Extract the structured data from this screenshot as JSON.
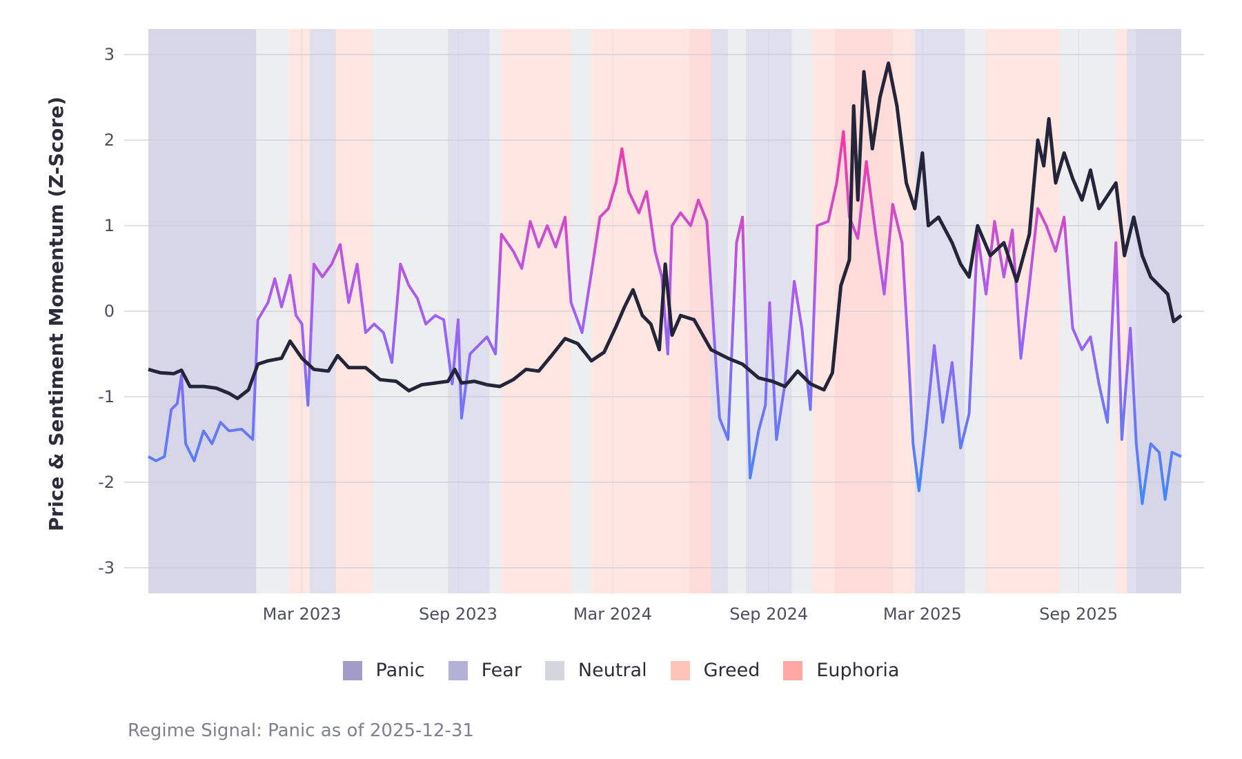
{
  "chart_data": {
    "type": "line",
    "title": "",
    "xlabel": "",
    "ylabel": "Price & Sentiment Momentum (Z-Score)",
    "x_range": [
      "2022-09-01",
      "2025-12-31"
    ],
    "ylim": [
      -3.3,
      3.3
    ],
    "y_ticks": [
      3,
      2,
      1,
      0,
      -1,
      -2,
      -3
    ],
    "x_ticks": [
      {
        "date": "2023-03-01",
        "label": "Mar 2023"
      },
      {
        "date": "2023-09-01",
        "label": "Sep 2023"
      },
      {
        "date": "2024-03-01",
        "label": "Mar 2024"
      },
      {
        "date": "2024-09-01",
        "label": "Sep 2024"
      },
      {
        "date": "2025-03-01",
        "label": "Mar 2025"
      },
      {
        "date": "2025-09-01",
        "label": "Sep 2025"
      }
    ],
    "grid": true,
    "legend_position": "bottom",
    "regime_colors": {
      "Panic": "#a09ec8",
      "Fear": "#b3b2d6",
      "Neutral": "#d3d6dc",
      "Greed": "#ffc4b8",
      "Euphoria": "#ffa9a4"
    },
    "legend": [
      "Panic",
      "Fear",
      "Neutral",
      "Greed",
      "Euphoria"
    ],
    "regime_bands": [
      {
        "start": "2022-09-01",
        "end": "2023-01-06",
        "regime": "Panic"
      },
      {
        "start": "2023-01-06",
        "end": "2023-02-14",
        "regime": "Neutral"
      },
      {
        "start": "2023-02-14",
        "end": "2023-03-10",
        "regime": "Greed"
      },
      {
        "start": "2023-03-10",
        "end": "2023-04-10",
        "regime": "Fear"
      },
      {
        "start": "2023-04-10",
        "end": "2023-05-22",
        "regime": "Greed"
      },
      {
        "start": "2023-05-22",
        "end": "2023-08-20",
        "regime": "Neutral"
      },
      {
        "start": "2023-08-20",
        "end": "2023-10-08",
        "regime": "Fear"
      },
      {
        "start": "2023-10-08",
        "end": "2023-10-22",
        "regime": "Neutral"
      },
      {
        "start": "2023-10-22",
        "end": "2024-01-12",
        "regime": "Greed"
      },
      {
        "start": "2024-01-12",
        "end": "2024-02-05",
        "regime": "Neutral"
      },
      {
        "start": "2024-02-05",
        "end": "2024-05-30",
        "regime": "Greed"
      },
      {
        "start": "2024-05-30",
        "end": "2024-06-25",
        "regime": "Euphoria"
      },
      {
        "start": "2024-06-25",
        "end": "2024-07-15",
        "regime": "Fear"
      },
      {
        "start": "2024-07-15",
        "end": "2024-08-05",
        "regime": "Neutral"
      },
      {
        "start": "2024-08-05",
        "end": "2024-09-28",
        "regime": "Fear"
      },
      {
        "start": "2024-09-28",
        "end": "2024-10-22",
        "regime": "Neutral"
      },
      {
        "start": "2024-10-22",
        "end": "2024-11-18",
        "regime": "Greed"
      },
      {
        "start": "2024-11-18",
        "end": "2025-01-25",
        "regime": "Euphoria"
      },
      {
        "start": "2025-01-25",
        "end": "2025-02-20",
        "regime": "Greed"
      },
      {
        "start": "2025-02-20",
        "end": "2025-04-20",
        "regime": "Fear"
      },
      {
        "start": "2025-04-20",
        "end": "2025-05-15",
        "regime": "Neutral"
      },
      {
        "start": "2025-05-15",
        "end": "2025-08-10",
        "regime": "Greed"
      },
      {
        "start": "2025-08-10",
        "end": "2025-10-15",
        "regime": "Neutral"
      },
      {
        "start": "2025-10-15",
        "end": "2025-10-28",
        "regime": "Greed"
      },
      {
        "start": "2025-10-28",
        "end": "2025-11-08",
        "regime": "Fear"
      },
      {
        "start": "2025-11-08",
        "end": "2025-12-31",
        "regime": "Panic"
      }
    ],
    "series": [
      {
        "color": "#23263a",
        "points": [
          [
            "2022-09-01",
            -0.68
          ],
          [
            "2022-09-15",
            -0.72
          ],
          [
            "2022-10-01",
            -0.73
          ],
          [
            "2022-10-10",
            -0.69
          ],
          [
            "2022-10-20",
            -0.88
          ],
          [
            "2022-11-05",
            -0.88
          ],
          [
            "2022-11-20",
            -0.9
          ],
          [
            "2022-12-05",
            -0.96
          ],
          [
            "2022-12-15",
            -1.02
          ],
          [
            "2022-12-28",
            -0.92
          ],
          [
            "2023-01-08",
            -0.62
          ],
          [
            "2023-01-20",
            -0.58
          ],
          [
            "2023-02-05",
            -0.55
          ],
          [
            "2023-02-15",
            -0.35
          ],
          [
            "2023-03-01",
            -0.55
          ],
          [
            "2023-03-15",
            -0.68
          ],
          [
            "2023-04-01",
            -0.7
          ],
          [
            "2023-04-12",
            -0.52
          ],
          [
            "2023-04-25",
            -0.66
          ],
          [
            "2023-05-15",
            -0.66
          ],
          [
            "2023-06-01",
            -0.8
          ],
          [
            "2023-06-20",
            -0.82
          ],
          [
            "2023-07-05",
            -0.93
          ],
          [
            "2023-07-20",
            -0.86
          ],
          [
            "2023-08-05",
            -0.84
          ],
          [
            "2023-08-20",
            -0.82
          ],
          [
            "2023-08-28",
            -0.68
          ],
          [
            "2023-09-05",
            -0.84
          ],
          [
            "2023-09-20",
            -0.82
          ],
          [
            "2023-10-05",
            -0.86
          ],
          [
            "2023-10-20",
            -0.88
          ],
          [
            "2023-11-05",
            -0.8
          ],
          [
            "2023-11-20",
            -0.68
          ],
          [
            "2023-12-05",
            -0.7
          ],
          [
            "2023-12-20",
            -0.52
          ],
          [
            "2024-01-05",
            -0.32
          ],
          [
            "2024-01-20",
            -0.38
          ],
          [
            "2024-02-05",
            -0.58
          ],
          [
            "2024-02-20",
            -0.48
          ],
          [
            "2024-03-05",
            -0.18
          ],
          [
            "2024-03-15",
            0.05
          ],
          [
            "2024-03-25",
            0.25
          ],
          [
            "2024-04-05",
            -0.05
          ],
          [
            "2024-04-15",
            -0.15
          ],
          [
            "2024-04-25",
            -0.45
          ],
          [
            "2024-05-02",
            0.55
          ],
          [
            "2024-05-10",
            -0.28
          ],
          [
            "2024-05-20",
            -0.05
          ],
          [
            "2024-06-05",
            -0.1
          ],
          [
            "2024-06-25",
            -0.45
          ],
          [
            "2024-07-15",
            -0.55
          ],
          [
            "2024-08-01",
            -0.62
          ],
          [
            "2024-08-20",
            -0.78
          ],
          [
            "2024-09-05",
            -0.82
          ],
          [
            "2024-09-20",
            -0.88
          ],
          [
            "2024-10-05",
            -0.7
          ],
          [
            "2024-10-20",
            -0.85
          ],
          [
            "2024-11-05",
            -0.92
          ],
          [
            "2024-11-15",
            -0.72
          ],
          [
            "2024-11-25",
            0.3
          ],
          [
            "2024-12-05",
            0.6
          ],
          [
            "2024-12-10",
            2.4
          ],
          [
            "2024-12-15",
            1.3
          ],
          [
            "2024-12-22",
            2.8
          ],
          [
            "2025-01-01",
            1.9
          ],
          [
            "2025-01-10",
            2.5
          ],
          [
            "2025-01-20",
            2.9
          ],
          [
            "2025-01-30",
            2.4
          ],
          [
            "2025-02-10",
            1.5
          ],
          [
            "2025-02-20",
            1.2
          ],
          [
            "2025-03-01",
            1.85
          ],
          [
            "2025-03-08",
            1.0
          ],
          [
            "2025-03-20",
            1.1
          ],
          [
            "2025-04-05",
            0.8
          ],
          [
            "2025-04-15",
            0.55
          ],
          [
            "2025-04-25",
            0.4
          ],
          [
            "2025-05-05",
            1.0
          ],
          [
            "2025-05-20",
            0.65
          ],
          [
            "2025-06-05",
            0.8
          ],
          [
            "2025-06-20",
            0.35
          ],
          [
            "2025-07-05",
            0.9
          ],
          [
            "2025-07-15",
            2.0
          ],
          [
            "2025-07-22",
            1.7
          ],
          [
            "2025-07-28",
            2.25
          ],
          [
            "2025-08-05",
            1.5
          ],
          [
            "2025-08-15",
            1.85
          ],
          [
            "2025-08-25",
            1.55
          ],
          [
            "2025-09-05",
            1.3
          ],
          [
            "2025-09-15",
            1.65
          ],
          [
            "2025-09-25",
            1.2
          ],
          [
            "2025-10-05",
            1.35
          ],
          [
            "2025-10-15",
            1.5
          ],
          [
            "2025-10-25",
            0.65
          ],
          [
            "2025-11-05",
            1.1
          ],
          [
            "2025-11-15",
            0.65
          ],
          [
            "2025-11-25",
            0.4
          ],
          [
            "2025-12-05",
            0.3
          ],
          [
            "2025-12-15",
            0.2
          ],
          [
            "2025-12-22",
            -0.12
          ],
          [
            "2025-12-31",
            -0.05
          ]
        ]
      },
      {
        "color_low": "#3e8bf7",
        "color_mid": "#a65ff2",
        "color_high": "#f23aa8",
        "points": [
          [
            "2022-09-01",
            -1.7
          ],
          [
            "2022-09-10",
            -1.75
          ],
          [
            "2022-09-20",
            -1.7
          ],
          [
            "2022-09-28",
            -1.15
          ],
          [
            "2022-10-05",
            -1.08
          ],
          [
            "2022-10-10",
            -0.75
          ],
          [
            "2022-10-15",
            -1.55
          ],
          [
            "2022-10-25",
            -1.75
          ],
          [
            "2022-11-05",
            -1.4
          ],
          [
            "2022-11-15",
            -1.55
          ],
          [
            "2022-11-25",
            -1.3
          ],
          [
            "2022-12-05",
            -1.4
          ],
          [
            "2022-12-20",
            -1.38
          ],
          [
            "2023-01-02",
            -1.5
          ],
          [
            "2023-01-08",
            -0.1
          ],
          [
            "2023-01-20",
            0.1
          ],
          [
            "2023-01-28",
            0.38
          ],
          [
            "2023-02-05",
            0.05
          ],
          [
            "2023-02-15",
            0.42
          ],
          [
            "2023-02-22",
            -0.05
          ],
          [
            "2023-03-01",
            -0.15
          ],
          [
            "2023-03-08",
            -1.1
          ],
          [
            "2023-03-15",
            0.55
          ],
          [
            "2023-03-25",
            0.4
          ],
          [
            "2023-04-05",
            0.55
          ],
          [
            "2023-04-15",
            0.78
          ],
          [
            "2023-04-25",
            0.1
          ],
          [
            "2023-05-05",
            0.55
          ],
          [
            "2023-05-15",
            -0.25
          ],
          [
            "2023-05-25",
            -0.15
          ],
          [
            "2023-06-05",
            -0.25
          ],
          [
            "2023-06-15",
            -0.6
          ],
          [
            "2023-06-25",
            0.55
          ],
          [
            "2023-07-05",
            0.3
          ],
          [
            "2023-07-15",
            0.15
          ],
          [
            "2023-07-25",
            -0.15
          ],
          [
            "2023-08-05",
            -0.05
          ],
          [
            "2023-08-15",
            -0.1
          ],
          [
            "2023-08-25",
            -0.85
          ],
          [
            "2023-09-01",
            -0.1
          ],
          [
            "2023-09-05",
            -1.25
          ],
          [
            "2023-09-15",
            -0.5
          ],
          [
            "2023-09-25",
            -0.4
          ],
          [
            "2023-10-05",
            -0.3
          ],
          [
            "2023-10-15",
            -0.5
          ],
          [
            "2023-10-22",
            0.9
          ],
          [
            "2023-11-05",
            0.7
          ],
          [
            "2023-11-15",
            0.5
          ],
          [
            "2023-11-25",
            1.05
          ],
          [
            "2023-12-05",
            0.75
          ],
          [
            "2023-12-15",
            1.0
          ],
          [
            "2023-12-25",
            0.75
          ],
          [
            "2024-01-05",
            1.1
          ],
          [
            "2024-01-12",
            0.1
          ],
          [
            "2024-01-25",
            -0.25
          ],
          [
            "2024-02-05",
            0.45
          ],
          [
            "2024-02-15",
            1.1
          ],
          [
            "2024-02-25",
            1.2
          ],
          [
            "2024-03-05",
            1.5
          ],
          [
            "2024-03-12",
            1.9
          ],
          [
            "2024-03-20",
            1.4
          ],
          [
            "2024-04-01",
            1.15
          ],
          [
            "2024-04-10",
            1.4
          ],
          [
            "2024-04-20",
            0.7
          ],
          [
            "2024-04-28",
            0.4
          ],
          [
            "2024-05-05",
            -0.5
          ],
          [
            "2024-05-10",
            1.0
          ],
          [
            "2024-05-20",
            1.15
          ],
          [
            "2024-06-01",
            1.0
          ],
          [
            "2024-06-10",
            1.3
          ],
          [
            "2024-06-20",
            1.05
          ],
          [
            "2024-06-28",
            -0.2
          ],
          [
            "2024-07-05",
            -1.25
          ],
          [
            "2024-07-15",
            -1.5
          ],
          [
            "2024-07-25",
            0.8
          ],
          [
            "2024-08-01",
            1.1
          ],
          [
            "2024-08-10",
            -1.95
          ],
          [
            "2024-08-20",
            -1.4
          ],
          [
            "2024-08-28",
            -1.1
          ],
          [
            "2024-09-02",
            0.1
          ],
          [
            "2024-09-10",
            -1.5
          ],
          [
            "2024-09-20",
            -0.85
          ],
          [
            "2024-10-01",
            0.35
          ],
          [
            "2024-10-10",
            -0.2
          ],
          [
            "2024-10-20",
            -1.15
          ],
          [
            "2024-10-28",
            1.0
          ],
          [
            "2024-11-10",
            1.05
          ],
          [
            "2024-11-20",
            1.5
          ],
          [
            "2024-11-28",
            2.1
          ],
          [
            "2024-12-05",
            1.1
          ],
          [
            "2024-12-15",
            0.85
          ],
          [
            "2024-12-25",
            1.75
          ],
          [
            "2025-01-05",
            0.9
          ],
          [
            "2025-01-15",
            0.2
          ],
          [
            "2025-01-25",
            1.25
          ],
          [
            "2025-02-05",
            0.8
          ],
          [
            "2025-02-12",
            -0.4
          ],
          [
            "2025-02-18",
            -1.55
          ],
          [
            "2025-02-25",
            -2.1
          ],
          [
            "2025-03-05",
            -1.4
          ],
          [
            "2025-03-15",
            -0.4
          ],
          [
            "2025-03-25",
            -1.3
          ],
          [
            "2025-04-05",
            -0.6
          ],
          [
            "2025-04-15",
            -1.6
          ],
          [
            "2025-04-25",
            -1.2
          ],
          [
            "2025-05-05",
            0.9
          ],
          [
            "2025-05-15",
            0.2
          ],
          [
            "2025-05-25",
            1.05
          ],
          [
            "2025-06-05",
            0.4
          ],
          [
            "2025-06-15",
            0.95
          ],
          [
            "2025-06-25",
            -0.55
          ],
          [
            "2025-07-05",
            0.3
          ],
          [
            "2025-07-15",
            1.2
          ],
          [
            "2025-07-25",
            1.0
          ],
          [
            "2025-08-05",
            0.7
          ],
          [
            "2025-08-15",
            1.1
          ],
          [
            "2025-08-25",
            -0.2
          ],
          [
            "2025-09-05",
            -0.45
          ],
          [
            "2025-09-15",
            -0.3
          ],
          [
            "2025-09-25",
            -0.85
          ],
          [
            "2025-10-05",
            -1.3
          ],
          [
            "2025-10-15",
            0.8
          ],
          [
            "2025-10-22",
            -1.5
          ],
          [
            "2025-11-01",
            -0.2
          ],
          [
            "2025-11-08",
            -1.55
          ],
          [
            "2025-11-15",
            -2.25
          ],
          [
            "2025-11-25",
            -1.55
          ],
          [
            "2025-12-05",
            -1.65
          ],
          [
            "2025-12-12",
            -2.2
          ],
          [
            "2025-12-20",
            -1.65
          ],
          [
            "2025-12-31",
            -1.7
          ]
        ]
      }
    ]
  },
  "caption": "Regime Signal: Panic as of 2025-12-31"
}
